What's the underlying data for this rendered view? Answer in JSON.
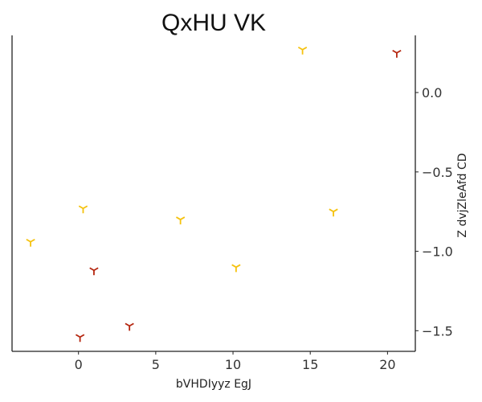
{
  "chart_data": {
    "type": "scatter",
    "title": "QxHU VK",
    "xlabel": "bVHDIyyz EgJ",
    "ylabel": "Z dvjZleAfd CD",
    "xlim": [
      -4.3,
      21.8
    ],
    "ylim": [
      -1.63,
      0.36
    ],
    "xticks": [
      0,
      5,
      10,
      15,
      20
    ],
    "xtick_labels": [
      "0",
      "5",
      "10",
      "15",
      "20"
    ],
    "yticks": [
      0.0,
      -0.5,
      -1.0,
      -1.5
    ],
    "ytick_labels": [
      "0.0",
      "−0.5",
      "−1.0",
      "−1.5"
    ],
    "yaxis_side": "right",
    "grid": false,
    "legend": "none",
    "marker": "tri_down",
    "series": [
      {
        "color": "#f5c20e",
        "x": [
          14.5,
          0.3,
          6.6,
          16.5,
          -3.1,
          10.2
        ],
        "y": [
          0.27,
          -0.73,
          -0.8,
          -0.75,
          -0.94,
          -1.1
        ]
      },
      {
        "color": "#b5260f",
        "x": [
          20.6,
          1.0,
          3.3,
          0.1
        ],
        "y": [
          0.25,
          -1.12,
          -1.47,
          -1.54
        ]
      }
    ]
  }
}
